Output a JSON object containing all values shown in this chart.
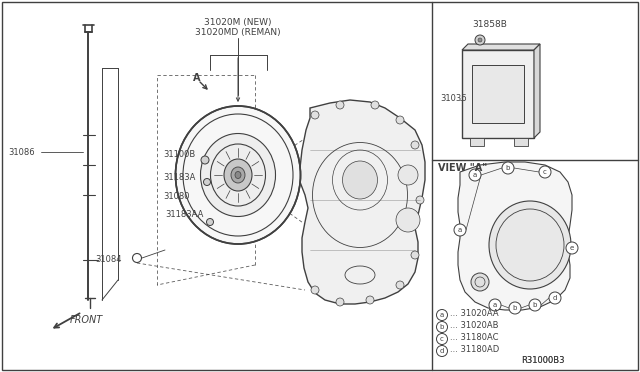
{
  "bg_color": "#ffffff",
  "line_color": "#404040",
  "labels": {
    "31020M_NEW": "31020M (NEW)",
    "31020MD_REMAN": "31020MD (REMAN)",
    "31086": "31086",
    "31100B": "31100B",
    "31183A": "31183A",
    "31080": "31080",
    "31183AA": "31183AA",
    "31084": "31084",
    "31858": "31858B",
    "31036": "31036",
    "view_a": "VIEW \"A\"",
    "front": "FRONT",
    "ref_a": "A",
    "ref_code": "R31000B3",
    "legend_a": "... 31020AA",
    "legend_b": "... 31020AB",
    "legend_c": "... 31180AC",
    "legend_d": "... 31180AD"
  }
}
